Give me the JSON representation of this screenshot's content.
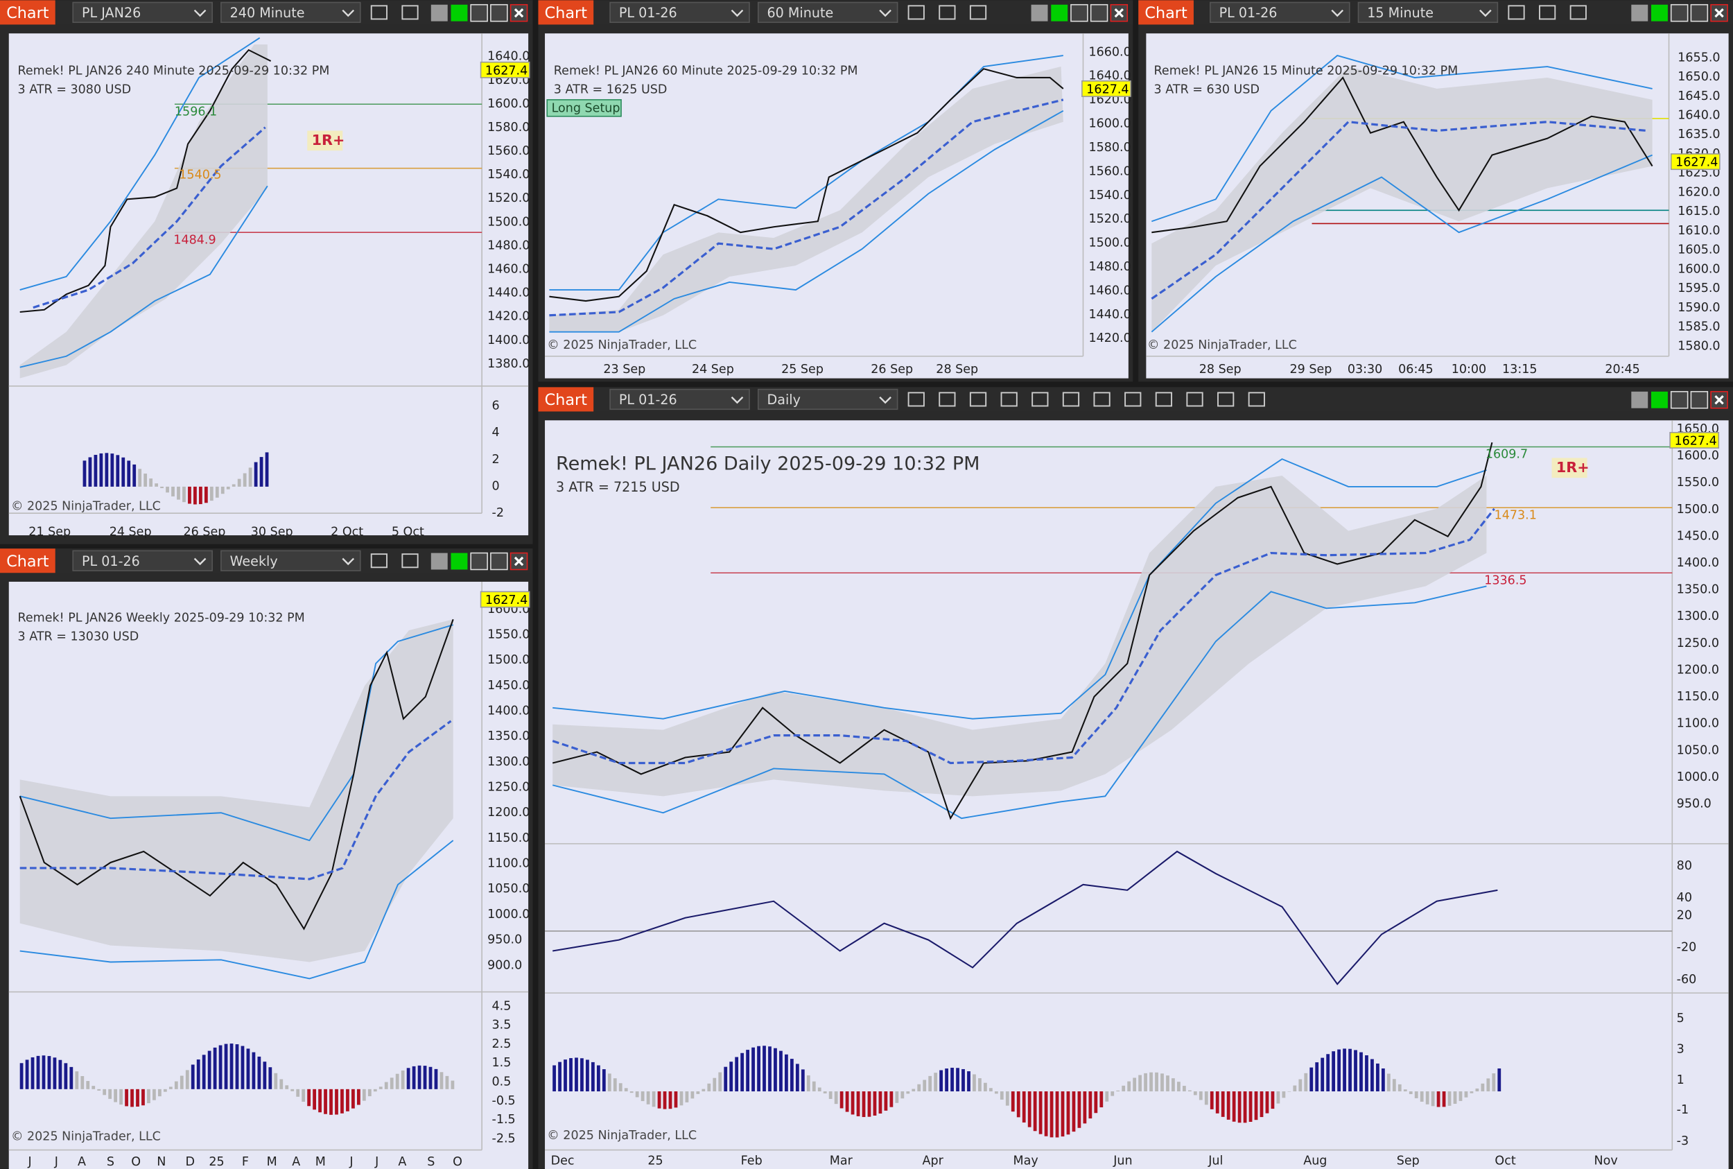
{
  "windows": [
    {
      "tab": "Chart",
      "instrument": "PL JAN26",
      "interval": "240 Minute",
      "title": "Remek!  PL JAN26  240 Minute  2025-09-29 10:32 PM",
      "atr": "3 ATR = 3080 USD",
      "last_price": "1627.4",
      "price_axis": [
        "1640.0",
        "1620.0",
        "1600.0",
        "1580.0",
        "1560.0",
        "1540.0",
        "1520.0",
        "1500.0",
        "1480.0",
        "1460.0",
        "1440.0",
        "1420.0",
        "1400.0",
        "1380.0"
      ],
      "indicator_axis": [
        "6",
        "4",
        "2",
        "0",
        "-2"
      ],
      "time_axis": [
        "21 Sep",
        "24 Sep",
        "26 Sep",
        "30 Sep",
        "2 Oct",
        "5 Oct"
      ],
      "annotations": [
        "1596.1",
        "1540.5",
        "1484.9",
        "1R+"
      ],
      "copyright": "© 2025 NinjaTrader, LLC"
    },
    {
      "tab": "Chart",
      "instrument": "PL 01-26",
      "interval": "60 Minute",
      "title": "Remek!  PL JAN26  60 Minute  2025-09-29 10:32 PM",
      "atr": "3 ATR = 1625 USD",
      "last_price": "1627.4",
      "button": "Long Setup",
      "price_axis": [
        "1660.0",
        "1640.0",
        "1620.0",
        "1600.0",
        "1580.0",
        "1560.0",
        "1540.0",
        "1520.0",
        "1500.0",
        "1480.0",
        "1460.0",
        "1440.0",
        "1420.0"
      ],
      "time_axis": [
        "23 Sep",
        "24 Sep",
        "25 Sep",
        "26 Sep",
        "28 Sep"
      ],
      "copyright": "© 2025 NinjaTrader, LLC"
    },
    {
      "tab": "Chart",
      "instrument": "PL 01-26",
      "interval": "15 Minute",
      "title": "Remek!  PL JAN26  15 Minute  2025-09-29 10:32 PM",
      "atr": "3 ATR = 630 USD",
      "last_price": "1627.4",
      "price_axis": [
        "1655.0",
        "1650.0",
        "1645.0",
        "1640.0",
        "1635.0",
        "1630.0",
        "1625.0",
        "1620.0",
        "1615.0",
        "1610.0",
        "1605.0",
        "1600.0",
        "1595.0",
        "1590.0",
        "1585.0",
        "1580.0"
      ],
      "time_axis": [
        "28 Sep",
        "29 Sep",
        "03:30",
        "06:45",
        "10:00",
        "13:15",
        "20:45"
      ],
      "copyright": "© 2025 NinjaTrader, LLC"
    },
    {
      "tab": "Chart",
      "instrument": "PL 01-26",
      "interval": "Weekly",
      "title": "Remek!  PL JAN26  Weekly  2025-09-29 10:32 PM",
      "atr": "3 ATR = 13030 USD",
      "last_price": "1627.4",
      "price_axis": [
        "1600.0",
        "1550.0",
        "1500.0",
        "1450.0",
        "1400.0",
        "1350.0",
        "1300.0",
        "1250.0",
        "1200.0",
        "1150.0",
        "1100.0",
        "1050.0",
        "1000.0",
        "950.0",
        "900.0"
      ],
      "indicator_axis": [
        "4.5",
        "3.5",
        "2.5",
        "1.5",
        "0.5",
        "-0.5",
        "-1.5",
        "-2.5"
      ],
      "time_axis": [
        "J",
        "J",
        "A",
        "S",
        "O",
        "N",
        "D",
        "25",
        "F",
        "M",
        "A",
        "M",
        "J",
        "J",
        "A",
        "S",
        "O"
      ],
      "copyright": "© 2025 NinjaTrader, LLC"
    },
    {
      "tab": "Chart",
      "instrument": "PL 01-26",
      "interval": "Daily",
      "title": "Remek!  PL JAN26  Daily  2025-09-29 10:32 PM",
      "atr": "3 ATR = 7215 USD",
      "last_price": "1627.4",
      "price_axis": [
        "1650.0",
        "1600.0",
        "1550.0",
        "1500.0",
        "1450.0",
        "1400.0",
        "1350.0",
        "1300.0",
        "1250.0",
        "1200.0",
        "1150.0",
        "1100.0",
        "1050.0",
        "1000.0",
        "950.0"
      ],
      "oscillator_axis": [
        "80",
        "40",
        "20",
        "-20",
        "-60"
      ],
      "indicator_axis": [
        "5",
        "3",
        "1",
        "-1",
        "-3"
      ],
      "time_axis": [
        "Dec",
        "25",
        "Feb",
        "Mar",
        "Apr",
        "May",
        "Jun",
        "Jul",
        "Aug",
        "Sep",
        "Oct",
        "Nov"
      ],
      "annotations": [
        "1609.7",
        "1473.1",
        "1336.5",
        "1R+"
      ],
      "copyright": "© 2025 NinjaTrader, LLC"
    }
  ]
}
